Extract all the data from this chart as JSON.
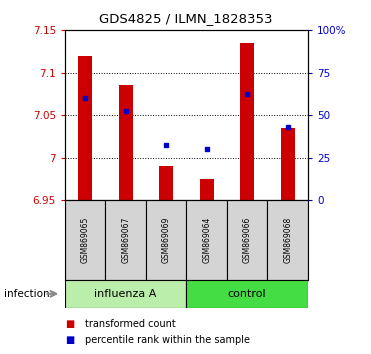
{
  "title": "GDS4825 / ILMN_1828353",
  "samples": [
    "GSM869065",
    "GSM869067",
    "GSM869069",
    "GSM869064",
    "GSM869066",
    "GSM869068"
  ],
  "bar_tops": [
    7.12,
    7.085,
    6.99,
    6.975,
    7.135,
    7.035
  ],
  "bar_bottom": 6.95,
  "blue_y": [
    7.07,
    7.055,
    7.015,
    7.01,
    7.075,
    7.036
  ],
  "ylim_left": [
    6.95,
    7.15
  ],
  "yticks_left": [
    6.95,
    7.0,
    7.05,
    7.1,
    7.15
  ],
  "ytick_labels_left": [
    "6.95",
    "7",
    "7.05",
    "7.1",
    "7.15"
  ],
  "yticks_right": [
    0,
    25,
    50,
    75,
    100
  ],
  "ytick_labels_right": [
    "0",
    "25",
    "50",
    "75",
    "100%"
  ],
  "bar_color": "#cc0000",
  "blue_color": "#0000cc",
  "bar_width": 0.35,
  "groups": [
    {
      "label": "influenza A",
      "indices": [
        0,
        1,
        2
      ],
      "color": "#bbeeaa"
    },
    {
      "label": "control",
      "indices": [
        3,
        4,
        5
      ],
      "color": "#44dd44"
    }
  ],
  "infection_label": "infection",
  "legend_items": [
    {
      "label": "transformed count",
      "color": "#cc0000"
    },
    {
      "label": "percentile rank within the sample",
      "color": "#0000cc"
    }
  ],
  "background_color": "#ffffff",
  "plot_bg_color": "#ffffff",
  "tick_label_color_left": "#cc0000",
  "tick_label_color_right": "#0000cc",
  "sample_box_color": "#d4d4d4",
  "grid_color": "#000000",
  "grid_linestyle": ":",
  "grid_linewidth": 0.7
}
